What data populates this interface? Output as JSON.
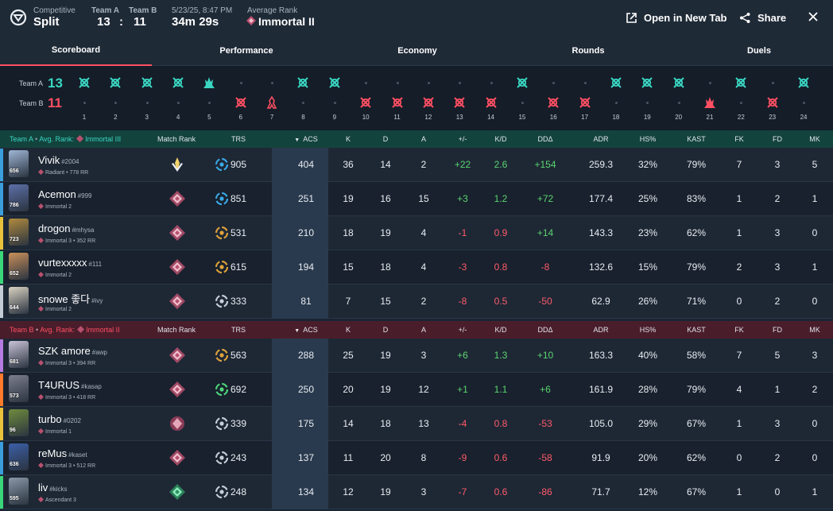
{
  "header": {
    "mode": "Competitive",
    "map": "Split",
    "team_a_label": "Team A",
    "team_a_score": "13",
    "separator": ":",
    "team_b_label": "Team B",
    "team_b_score": "11",
    "date": "5/23/25, 8:47 PM",
    "duration": "34m 29s",
    "avg_rank_label": "Average Rank",
    "avg_rank": "Immortal II",
    "open_tab": "Open in New Tab",
    "share": "Share",
    "colors": {
      "team_a": "#3ad6c2",
      "team_b": "#ff4f63"
    }
  },
  "tabs": [
    "Scoreboard",
    "Performance",
    "Economy",
    "Rounds",
    "Duels"
  ],
  "timeline": {
    "team_a_label": "Team A",
    "team_a_score": "13",
    "team_b_label": "Team B",
    "team_b_score": "11",
    "rounds": [
      {
        "n": "1",
        "w": "A",
        "icon": "elim"
      },
      {
        "n": "2",
        "w": "A",
        "icon": "elim"
      },
      {
        "n": "3",
        "w": "A",
        "icon": "elim"
      },
      {
        "n": "4",
        "w": "A",
        "icon": "elim"
      },
      {
        "n": "5",
        "w": "A",
        "icon": "spike-detonate"
      },
      {
        "n": "6",
        "w": "B",
        "icon": "elim"
      },
      {
        "n": "7",
        "w": "B",
        "icon": "defuse"
      },
      {
        "n": "8",
        "w": "A",
        "icon": "elim"
      },
      {
        "n": "9",
        "w": "A",
        "icon": "elim"
      },
      {
        "n": "10",
        "w": "B",
        "icon": "elim"
      },
      {
        "n": "11",
        "w": "B",
        "icon": "elim"
      },
      {
        "n": "12",
        "w": "B",
        "icon": "elim"
      },
      {
        "n": "13",
        "w": "B",
        "icon": "elim"
      },
      {
        "n": "14",
        "w": "B",
        "icon": "elim"
      },
      {
        "n": "15",
        "w": "A",
        "icon": "elim"
      },
      {
        "n": "16",
        "w": "B",
        "icon": "elim"
      },
      {
        "n": "17",
        "w": "B",
        "icon": "elim"
      },
      {
        "n": "18",
        "w": "A",
        "icon": "elim"
      },
      {
        "n": "19",
        "w": "A",
        "icon": "elim"
      },
      {
        "n": "20",
        "w": "A",
        "icon": "elim"
      },
      {
        "n": "21",
        "w": "B",
        "icon": "spike-detonate"
      },
      {
        "n": "22",
        "w": "A",
        "icon": "elim"
      },
      {
        "n": "23",
        "w": "B",
        "icon": "elim"
      },
      {
        "n": "24",
        "w": "A",
        "icon": "elim"
      }
    ]
  },
  "columns": [
    "Match Rank",
    "TRS",
    "ACS",
    "K",
    "D",
    "A",
    "+/-",
    "K/D",
    "DDΔ",
    "ADR",
    "HS%",
    "KAST",
    "FK",
    "FD",
    "MK"
  ],
  "team_a": {
    "label": "Team A",
    "avg_rank_label": "Avg. Rank:",
    "avg_rank": "Immortal III",
    "players": [
      {
        "name": "Vivik",
        "tag": "#2004",
        "level": "656",
        "rank": "Radiant • 778 RR",
        "strip": "#3a9ddc",
        "avatar": "#9fb6d6",
        "mr": "radiant",
        "trs_icon": "#3aa9e8",
        "trs": "905",
        "acs": "404",
        "k": "36",
        "d": "14",
        "a": "2",
        "pm": "+22",
        "kd": "2.6",
        "dd": "+154",
        "adr": "259.3",
        "hs": "32%",
        "kast": "79%",
        "fk": "7",
        "fd": "3",
        "mk": "5"
      },
      {
        "name": "Acemon",
        "tag": "#999",
        "level": "786",
        "rank": "Immortal 2",
        "strip": "#3a9ddc",
        "avatar": "#5d6fa8",
        "mr": "immortal",
        "trs_icon": "#3aa9e8",
        "trs": "851",
        "acs": "251",
        "k": "19",
        "d": "16",
        "a": "15",
        "pm": "+3",
        "kd": "1.2",
        "dd": "+72",
        "adr": "177.4",
        "hs": "25%",
        "kast": "83%",
        "fk": "1",
        "fd": "2",
        "mk": "1"
      },
      {
        "name": "drogon",
        "tag": "#mhysa",
        "level": "723",
        "rank": "Immortal 3 • 352 RR",
        "strip": "#e8c23a",
        "avatar": "#b08a3e",
        "mr": "immortal",
        "trs_icon": "#e0a33a",
        "trs": "531",
        "acs": "210",
        "k": "18",
        "d": "19",
        "a": "4",
        "pm": "-1",
        "kd": "0.9",
        "dd": "+14",
        "adr": "143.3",
        "hs": "23%",
        "kast": "62%",
        "fk": "1",
        "fd": "3",
        "mk": "0"
      },
      {
        "name": "vurtexxxxx",
        "tag": "#111",
        "level": "652",
        "rank": "Immortal 2",
        "strip": "#3ad67a",
        "avatar": "#c9905a",
        "mr": "immortal",
        "trs_icon": "#e0a33a",
        "trs": "615",
        "acs": "194",
        "k": "15",
        "d": "18",
        "a": "4",
        "pm": "-3",
        "kd": "0.8",
        "dd": "-8",
        "adr": "132.6",
        "hs": "15%",
        "kast": "79%",
        "fk": "2",
        "fd": "3",
        "mk": "1"
      },
      {
        "name": "snowe 좋다",
        "tag": "#ivy",
        "level": "644",
        "rank": "Immortal 2",
        "strip": "#c4cdd6",
        "avatar": "#d9d2c2",
        "mr": "immortal",
        "trs_icon": "#c7cfd8",
        "trs": "333",
        "acs": "81",
        "k": "7",
        "d": "15",
        "a": "2",
        "pm": "-8",
        "kd": "0.5",
        "dd": "-50",
        "adr": "62.9",
        "hs": "26%",
        "kast": "71%",
        "fk": "0",
        "fd": "2",
        "mk": "0"
      }
    ]
  },
  "team_b": {
    "label": "Team B",
    "avg_rank_label": "Avg. Rank:",
    "avg_rank": "Immortal II",
    "players": [
      {
        "name": "SZK amore",
        "tag": "#awp",
        "level": "681",
        "rank": "Immortal 3 • 394 RR",
        "strip": "#b57be0",
        "avatar": "#c9c3d8",
        "mr": "immortal",
        "trs_icon": "#e0a33a",
        "trs": "563",
        "acs": "288",
        "k": "25",
        "d": "19",
        "a": "3",
        "pm": "+6",
        "kd": "1.3",
        "dd": "+10",
        "adr": "163.3",
        "hs": "40%",
        "kast": "58%",
        "fk": "7",
        "fd": "5",
        "mk": "3"
      },
      {
        "name": "T4URUS",
        "tag": "#kasap",
        "level": "573",
        "rank": "Immortal 3 • 418 RR",
        "strip": "#ff7a2a",
        "avatar": "#7d7e8e",
        "mr": "immortal",
        "trs_icon": "#4fd67a",
        "trs": "692",
        "acs": "250",
        "k": "20",
        "d": "19",
        "a": "12",
        "pm": "+1",
        "kd": "1.1",
        "dd": "+6",
        "adr": "161.9",
        "hs": "28%",
        "kast": "79%",
        "fk": "4",
        "fd": "1",
        "mk": "2"
      },
      {
        "name": "turbo",
        "tag": "#0202",
        "level": "96",
        "rank": "Immortal 1",
        "strip": "#e8c23a",
        "avatar": "#6f8b3d",
        "mr": "immortal-1",
        "trs_icon": "#c7cfd8",
        "trs": "339",
        "acs": "175",
        "k": "14",
        "d": "18",
        "a": "13",
        "pm": "-4",
        "kd": "0.8",
        "dd": "-53",
        "adr": "105.0",
        "hs": "29%",
        "kast": "67%",
        "fk": "1",
        "fd": "3",
        "mk": "0"
      },
      {
        "name": "reMus",
        "tag": "#kaset",
        "level": "636",
        "rank": "Immortal 3 • 512 RR",
        "strip": "#3a9ddc",
        "avatar": "#3c5fa8",
        "mr": "immortal",
        "trs_icon": "#c7cfd8",
        "trs": "243",
        "acs": "137",
        "k": "11",
        "d": "20",
        "a": "8",
        "pm": "-9",
        "kd": "0.6",
        "dd": "-58",
        "adr": "91.9",
        "hs": "20%",
        "kast": "62%",
        "fk": "0",
        "fd": "2",
        "mk": "0"
      },
      {
        "name": "liv",
        "tag": "#kicks",
        "level": "595",
        "rank": "Ascendant 3",
        "strip": "#3ad67a",
        "avatar": "#8a98a8",
        "mr": "ascendant",
        "trs_icon": "#c7cfd8",
        "trs": "248",
        "acs": "134",
        "k": "12",
        "d": "19",
        "a": "3",
        "pm": "-7",
        "kd": "0.6",
        "dd": "-86",
        "adr": "71.7",
        "hs": "12%",
        "kast": "67%",
        "fk": "1",
        "fd": "0",
        "mk": "1"
      }
    ]
  }
}
